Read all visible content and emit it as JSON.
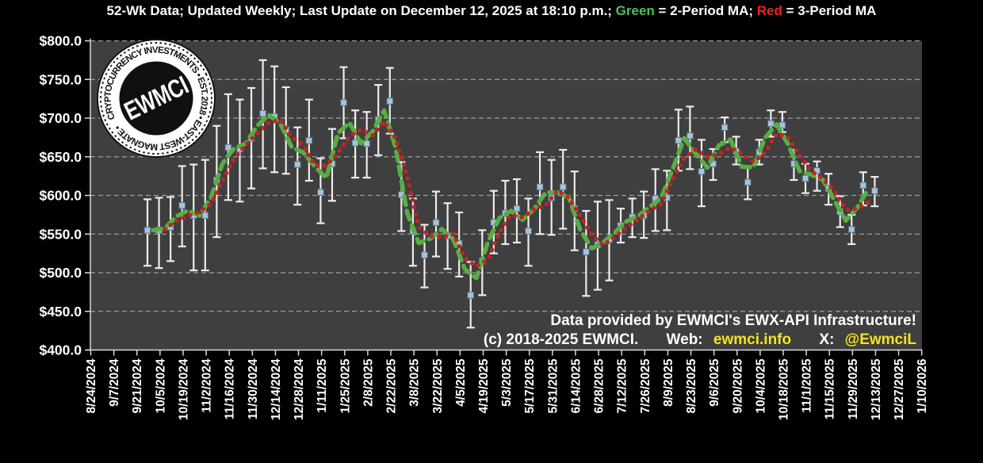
{
  "title": {
    "part1": "52-Wk Data; Updated Weekly; Last Update on December 12, 2025 at 18:10 p.m.; ",
    "green_word": "Green",
    "part2": " = 2-Period MA; ",
    "red_word": "Red",
    "part3": " = 3-Period MA"
  },
  "logo": {
    "ring_text": "CRYPTOCURRENCY INVESTMENTS • EST. 2018 • EAST-WEST MAGNATE •",
    "center_text": "EWMCI"
  },
  "annotation": {
    "line1": "Data provided by EWMCI's EWX-API Infrastructure!",
    "copyright": "(c) 2018-2025 EWMCI.",
    "web_label": "Web:",
    "web_value": "ewmci.info",
    "x_label": "X:",
    "x_value": "@EwmciL"
  },
  "colors": {
    "page_bg": "#000000",
    "plot_bg": "#3f3f3f",
    "grid": "#9e9e9e",
    "axis": "#d9d9d9",
    "whisker": "#ececec",
    "marker": "#a9c4da",
    "marker_edge": "#55708a",
    "ma2_green": "#58ad43",
    "ma3_red": "#c62322",
    "title_green": "#4fc24f",
    "title_red": "#ee2323",
    "link_yellow": "#f3e51e",
    "text": "#ffffff"
  },
  "chart_data": {
    "type": "scatter",
    "title": "52-Wk Data; Updated Weekly; Last Update on December 12, 2025 at 18:10 p.m.",
    "ylabel": "",
    "xlabel": "",
    "ylim": [
      400,
      800
    ],
    "grid": "horizontal-dashed",
    "ytick_labels": [
      "$800.0",
      "$750.0",
      "$700.0",
      "$650.0",
      "$600.0",
      "$550.0",
      "$500.0",
      "$450.0",
      "$400.0"
    ],
    "xtick_labels": [
      "8/24/2024",
      "9/7/2024",
      "9/21/2024",
      "10/5/2024",
      "10/19/2024",
      "11/2/2024",
      "11/16/2024",
      "11/30/2024",
      "12/14/2024",
      "12/28/2024",
      "1/11/2025",
      "1/25/2025",
      "2/8/2025",
      "2/22/2025",
      "3/8/2025",
      "3/22/2025",
      "4/5/2025",
      "4/19/2025",
      "5/3/2025",
      "5/17/2025",
      "5/31/2025",
      "6/14/2025",
      "6/28/2025",
      "7/12/2025",
      "7/26/2025",
      "8/9/2025",
      "8/23/2025",
      "9/6/2025",
      "9/20/2025",
      "10/4/2025",
      "10/18/2025",
      "11/1/2025",
      "11/15/2025",
      "11/29/2025",
      "12/13/2025",
      "12/27/2025",
      "1/10/2026"
    ],
    "x": [
      "9/28/2024",
      "10/5/2024",
      "10/12/2024",
      "10/19/2024",
      "10/26/2024",
      "11/2/2024",
      "11/9/2024",
      "11/16/2024",
      "11/23/2024",
      "11/30/2024",
      "12/7/2024",
      "12/14/2024",
      "12/21/2024",
      "12/28/2024",
      "1/4/2025",
      "1/11/2025",
      "1/18/2025",
      "1/25/2025",
      "2/1/2025",
      "2/8/2025",
      "2/15/2025",
      "2/22/2025",
      "3/1/2025",
      "3/8/2025",
      "3/15/2025",
      "3/22/2025",
      "3/29/2025",
      "4/5/2025",
      "4/12/2025",
      "4/19/2025",
      "4/26/2025",
      "5/3/2025",
      "5/10/2025",
      "5/17/2025",
      "5/24/2025",
      "5/31/2025",
      "6/7/2025",
      "6/14/2025",
      "6/21/2025",
      "6/28/2025",
      "7/5/2025",
      "7/12/2025",
      "7/19/2025",
      "7/26/2025",
      "8/2/2025",
      "8/9/2025",
      "8/16/2025",
      "8/23/2025",
      "8/30/2025",
      "9/6/2025",
      "9/13/2025",
      "9/20/2025",
      "9/27/2025",
      "10/4/2025",
      "10/11/2025",
      "10/18/2025",
      "10/25/2025",
      "11/1/2025",
      "11/8/2025",
      "11/15/2025",
      "11/22/2025",
      "11/29/2025",
      "12/6/2025",
      "12/13/2025"
    ],
    "values": [
      555,
      555,
      559,
      587,
      574,
      574,
      620,
      662,
      660,
      674,
      706,
      702,
      685,
      640,
      671,
      604,
      641,
      720,
      668,
      667,
      698,
      722,
      601,
      554,
      523,
      565,
      548,
      538,
      471,
      515,
      565,
      577,
      583,
      554,
      611,
      597,
      611,
      583,
      527,
      536,
      543,
      561,
      572,
      574,
      596,
      597,
      671,
      677,
      631,
      641,
      688,
      657,
      617,
      656,
      693,
      691,
      641,
      622,
      632,
      609,
      579,
      556,
      613,
      606
    ],
    "high": [
      595,
      597,
      598,
      638,
      640,
      646,
      690,
      731,
      724,
      739,
      775,
      767,
      740,
      688,
      724,
      648,
      686,
      766,
      710,
      708,
      743,
      765,
      643,
      596,
      562,
      605,
      590,
      578,
      514,
      555,
      606,
      619,
      621,
      596,
      656,
      646,
      659,
      631,
      580,
      592,
      594,
      583,
      596,
      605,
      634,
      632,
      711,
      715,
      672,
      660,
      701,
      676,
      638,
      672,
      710,
      708,
      659,
      641,
      644,
      628,
      599,
      575,
      630,
      624
    ],
    "low": [
      509,
      506,
      515,
      534,
      503,
      503,
      546,
      594,
      592,
      609,
      635,
      630,
      628,
      588,
      619,
      564,
      593,
      674,
      623,
      623,
      652,
      680,
      554,
      509,
      481,
      521,
      505,
      495,
      429,
      471,
      525,
      537,
      539,
      509,
      550,
      549,
      557,
      529,
      470,
      478,
      490,
      539,
      546,
      545,
      554,
      555,
      632,
      634,
      586,
      620,
      669,
      640,
      595,
      640,
      676,
      682,
      620,
      603,
      606,
      588,
      559,
      537,
      587,
      586
    ],
    "overlays": [
      {
        "name": "2-Period MA",
        "period": 2,
        "style": "dashed",
        "color": "#58ad43"
      },
      {
        "name": "3-Period MA",
        "period": 3,
        "style": "dotted",
        "color": "#c62322"
      }
    ]
  }
}
